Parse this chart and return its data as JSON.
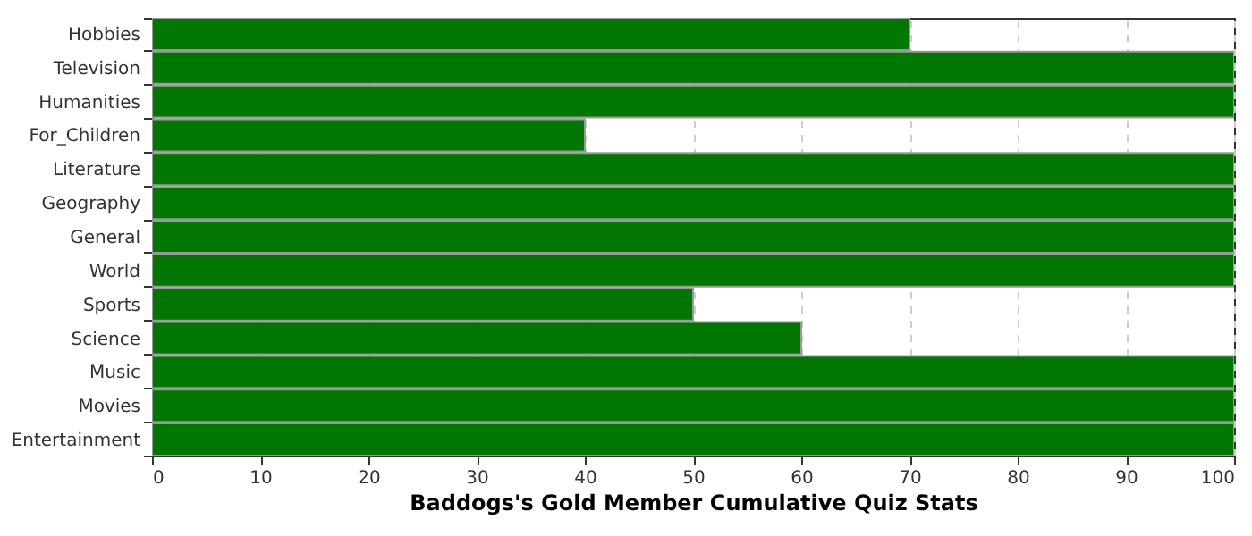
{
  "chart_data": {
    "type": "bar",
    "orientation": "horizontal",
    "xlabel": "Baddogs's Gold Member Cumulative Quiz Stats",
    "categories": [
      "Hobbies",
      "Television",
      "Humanities",
      "For_Children",
      "Literature",
      "Geography",
      "General",
      "World",
      "Sports",
      "Science",
      "Music",
      "Movies",
      "Entertainment"
    ],
    "values": [
      70,
      100,
      100,
      40,
      100,
      100,
      100,
      100,
      50,
      60,
      100,
      100,
      100
    ],
    "color": "#007700",
    "xlim": [
      0,
      100
    ],
    "xticks": [
      0,
      10,
      20,
      30,
      40,
      50,
      60,
      70,
      80,
      90,
      100
    ],
    "grid": "x"
  }
}
